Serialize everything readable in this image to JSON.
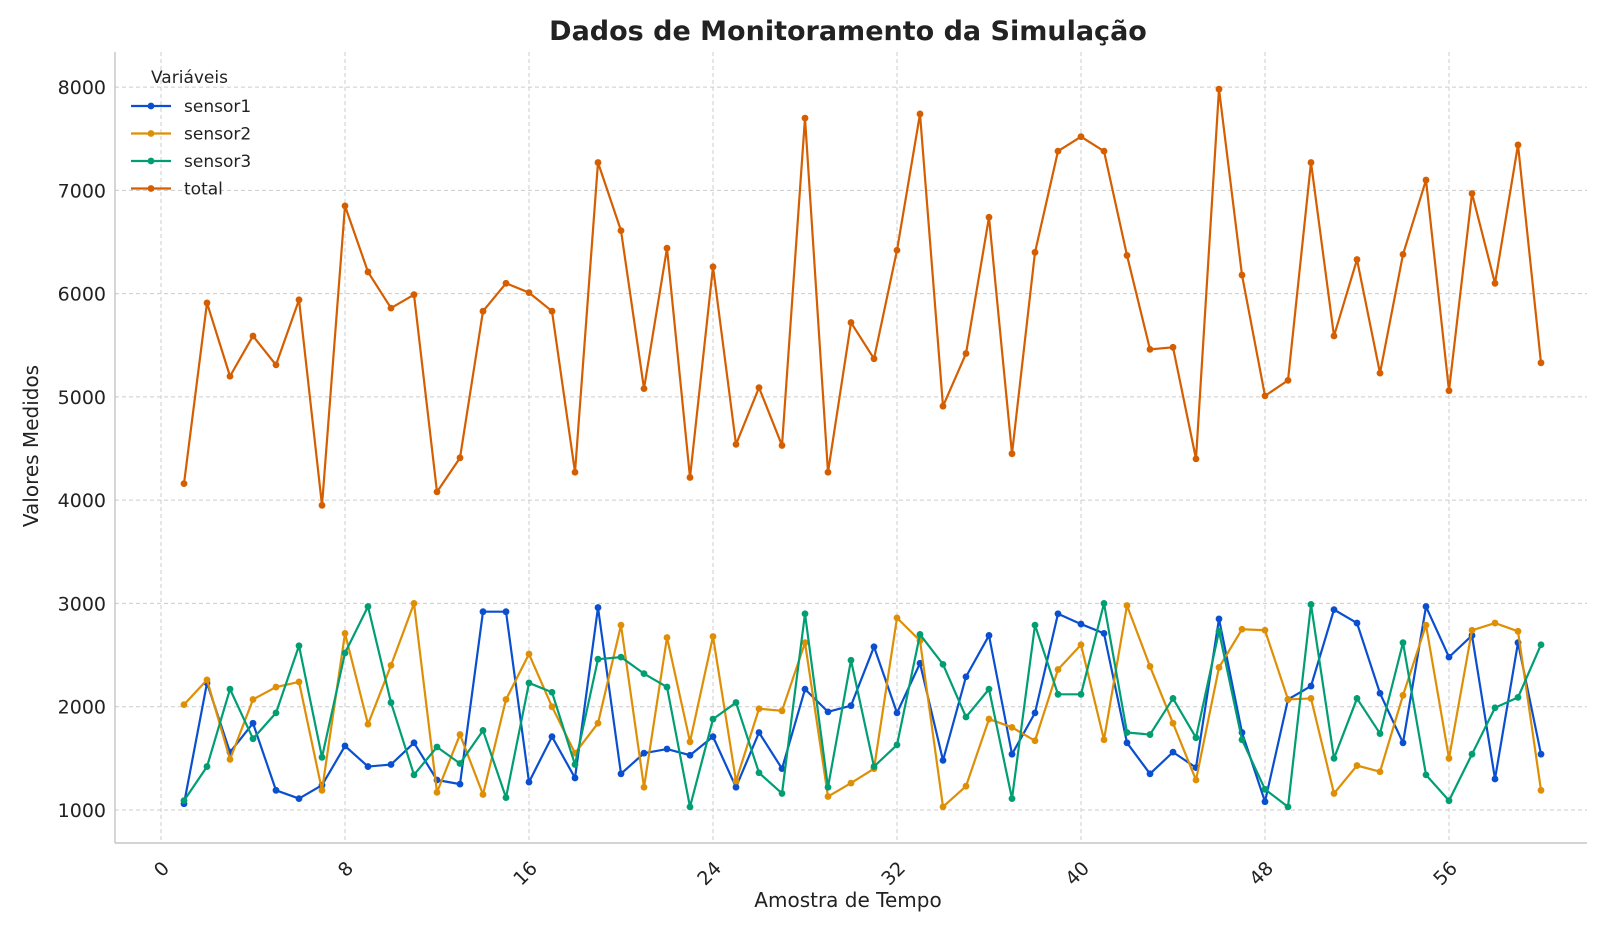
{
  "chart_data": {
    "type": "line",
    "title": "Dados de Monitoramento da Simulação",
    "xlabel": "Amostra de Tempo",
    "ylabel": "Valores Medidos",
    "xlim": [
      -2,
      62
    ],
    "ylim": [
      680,
      8340
    ],
    "xticks": [
      0,
      8,
      16,
      24,
      32,
      40,
      48,
      56
    ],
    "yticks": [
      1000,
      2000,
      3000,
      4000,
      5000,
      6000,
      7000,
      8000
    ],
    "grid": true,
    "legend": {
      "title": "Variáveis",
      "position": "top-left"
    },
    "x": [
      1,
      2,
      3,
      4,
      5,
      6,
      7,
      8,
      9,
      10,
      11,
      12,
      13,
      14,
      15,
      16,
      17,
      18,
      19,
      20,
      21,
      22,
      23,
      24,
      25,
      26,
      27,
      28,
      29,
      30,
      31,
      32,
      33,
      34,
      35,
      36,
      37,
      38,
      39,
      40,
      41,
      42,
      43,
      44,
      45,
      46,
      47,
      48,
      49,
      50,
      51,
      52,
      53,
      54,
      55,
      56,
      57,
      58,
      59,
      60
    ],
    "series": [
      {
        "name": "sensor1",
        "color": "#0a4fcf",
        "values": [
          1060,
          2230,
          1560,
          1840,
          1190,
          1110,
          1240,
          1620,
          1420,
          1440,
          1650,
          1290,
          1250,
          2920,
          2920,
          1270,
          1710,
          1310,
          2960,
          1350,
          1550,
          1590,
          1530,
          1710,
          1220,
          1750,
          1400,
          2170,
          1950,
          2010,
          2580,
          1940,
          2420,
          1480,
          2290,
          2690,
          1540,
          1940,
          2900,
          2800,
          2710,
          1650,
          1350,
          1560,
          1410,
          2850,
          1750,
          1080,
          2070,
          2200,
          2940,
          2810,
          2130,
          1650,
          2970,
          2480,
          2690,
          1300,
          2620,
          1540
        ]
      },
      {
        "name": "sensor2",
        "color": "#de8f05",
        "values": [
          2020,
          2260,
          1490,
          2070,
          2190,
          2240,
          1190,
          2710,
          1830,
          2400,
          3000,
          1170,
          1730,
          1150,
          2070,
          2510,
          2000,
          1550,
          1840,
          2790,
          1220,
          2670,
          1660,
          2680,
          1280,
          1980,
          1960,
          2620,
          1130,
          1260,
          1400,
          2860,
          2640,
          1030,
          1230,
          1880,
          1800,
          1670,
          2360,
          2600,
          1680,
          2980,
          2390,
          1840,
          1290,
          2380,
          2750,
          2740,
          2070,
          2080,
          1160,
          1430,
          1370,
          2110,
          2790,
          1500,
          2740,
          2810,
          2730,
          1190
        ]
      },
      {
        "name": "sensor3",
        "color": "#029e73",
        "values": [
          1090,
          1420,
          2170,
          1690,
          1940,
          2590,
          1510,
          2520,
          2970,
          2040,
          1340,
          1610,
          1450,
          1770,
          1120,
          2230,
          2140,
          1440,
          2460,
          2480,
          2320,
          2190,
          1030,
          1880,
          2040,
          1360,
          1160,
          2900,
          1220,
          2450,
          1420,
          1630,
          2700,
          2410,
          1900,
          2170,
          1110,
          2790,
          2120,
          2120,
          3000,
          1750,
          1730,
          2080,
          1700,
          2730,
          1680,
          1200,
          1030,
          2990,
          1500,
          2080,
          1740,
          2620,
          1340,
          1090,
          1540,
          1990,
          2090,
          2600
        ]
      },
      {
        "name": "total",
        "color": "#d55e00",
        "values": [
          4160,
          5910,
          5200,
          5590,
          5310,
          5940,
          3950,
          6850,
          6210,
          5860,
          5990,
          4080,
          4410,
          5830,
          6100,
          6010,
          5830,
          4270,
          7270,
          6610,
          5080,
          6440,
          4220,
          6260,
          4540,
          5090,
          4530,
          7700,
          4270,
          5720,
          5370,
          6420,
          7740,
          4910,
          5420,
          6740,
          4450,
          6400,
          7380,
          7520,
          7380,
          6370,
          5460,
          5480,
          4400,
          7980,
          6180,
          5010,
          5160,
          7270,
          5590,
          6330,
          5230,
          6380,
          7100,
          5060,
          6970,
          6100,
          7440,
          5330
        ]
      }
    ]
  }
}
